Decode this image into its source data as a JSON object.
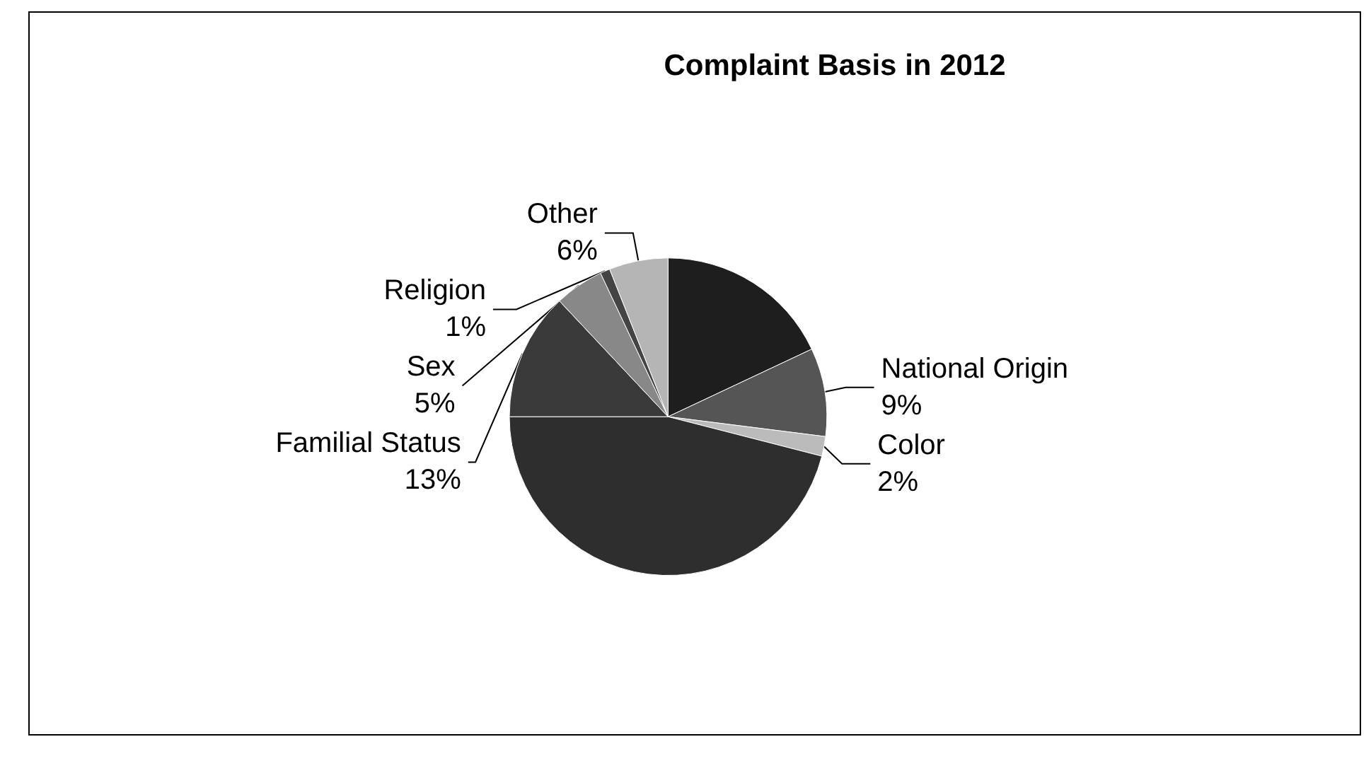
{
  "chart_data": {
    "type": "pie",
    "title": "Complaint Basis in 2012",
    "categories": [
      null,
      "National Origin",
      "Color",
      null,
      "Familial Status",
      "Sex",
      "Religion",
      "Other"
    ],
    "values": [
      18,
      9,
      2,
      46,
      13,
      5,
      1,
      6
    ],
    "value_labels": [
      null,
      "9%",
      "2%",
      null,
      "13%",
      "5%",
      "1%",
      "6%"
    ],
    "colors": [
      "#1e1e1e",
      "#555555",
      "#bbbbbb",
      "#2e2e2e",
      "#3a3a3a",
      "#888888",
      "#444444",
      "#b5b5b5"
    ],
    "legend": false
  }
}
